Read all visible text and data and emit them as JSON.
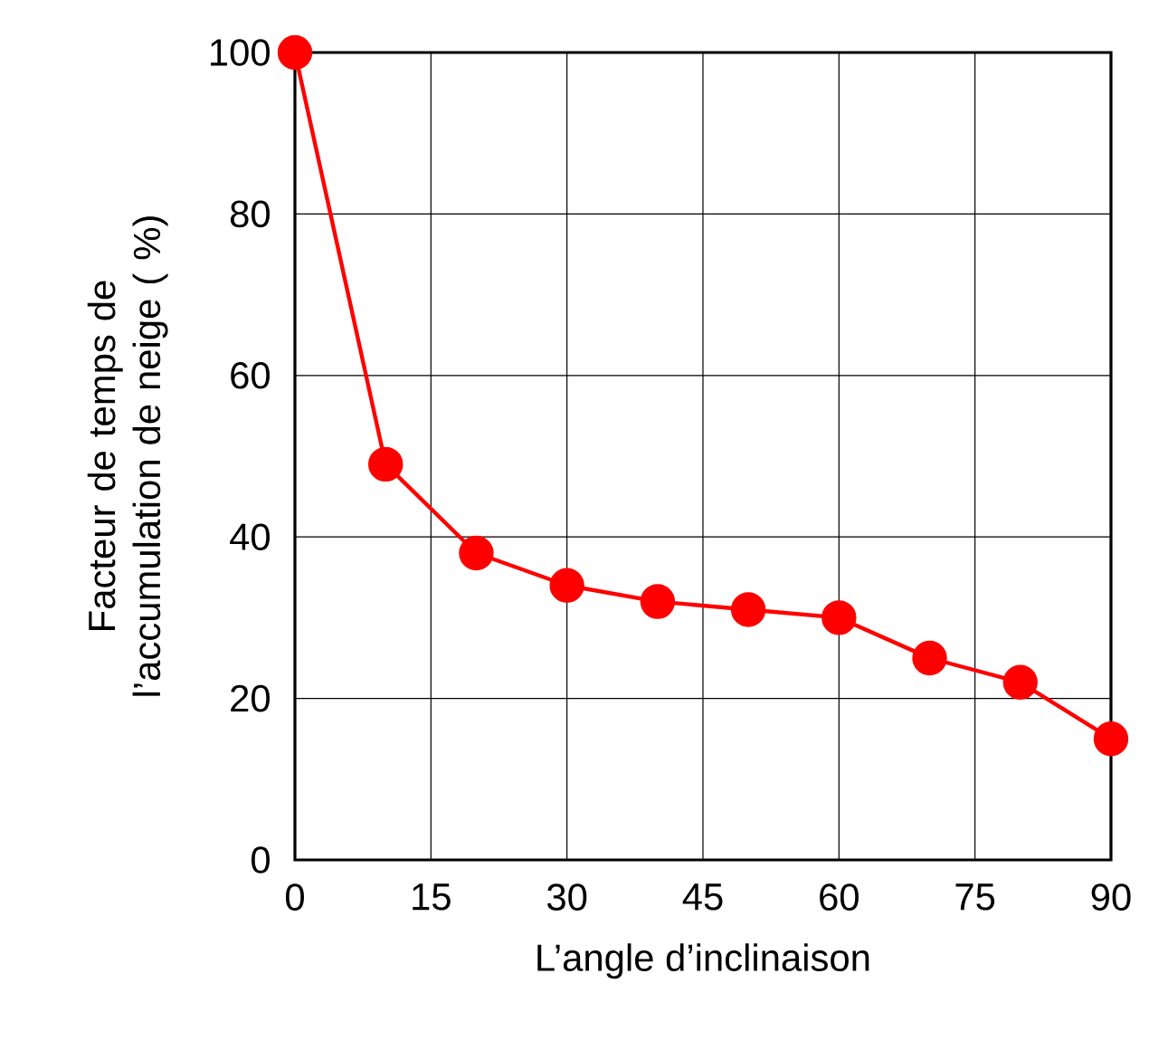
{
  "chart_data": {
    "type": "line",
    "xlabel": "L’angle d’inclinaison",
    "ylabel": "Facteur de temps de l’accumulation de neige ( %)",
    "x": [
      0,
      10,
      20,
      30,
      40,
      50,
      60,
      70,
      80,
      90
    ],
    "series": [
      {
        "color": "#ff0000",
        "values": [
          100,
          49,
          38,
          34,
          32,
          31,
          30,
          25,
          22,
          15
        ]
      }
    ],
    "xlim": [
      0,
      90
    ],
    "xticks": [
      0,
      15,
      30,
      45,
      60,
      75,
      90
    ],
    "ylim": [
      0,
      100
    ],
    "yticks": [
      0,
      20,
      40,
      60,
      80,
      100
    ],
    "grid": true,
    "marker": "circle",
    "line_style": "solid"
  }
}
